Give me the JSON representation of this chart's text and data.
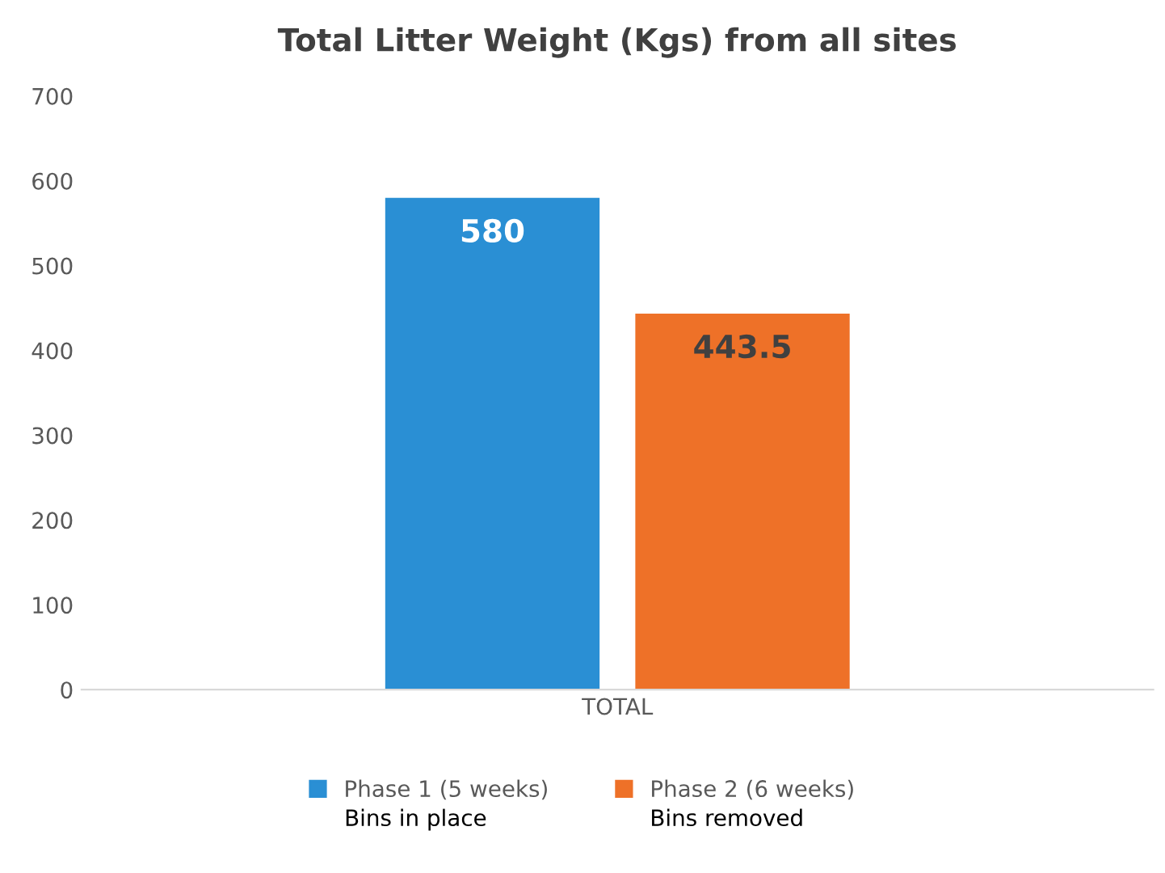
{
  "chart_data": {
    "type": "bar",
    "title": "Total Litter Weight (Kgs) from all sites",
    "categories": [
      "TOTAL"
    ],
    "series": [
      {
        "name": "Phase 1 (5 weeks)",
        "color": "#2a8fd4",
        "values": [
          580
        ]
      },
      {
        "name": "Phase 2 (6 weeks)",
        "color": "#ee7128",
        "values": [
          443.5
        ]
      }
    ],
    "ylim": [
      0,
      700
    ],
    "yticks": [
      0,
      100,
      200,
      300,
      400,
      500,
      600,
      700
    ],
    "data_labels": true,
    "grid": false,
    "legend": "bottom",
    "annotations": [
      "Bins in place",
      "Bins removed"
    ]
  }
}
